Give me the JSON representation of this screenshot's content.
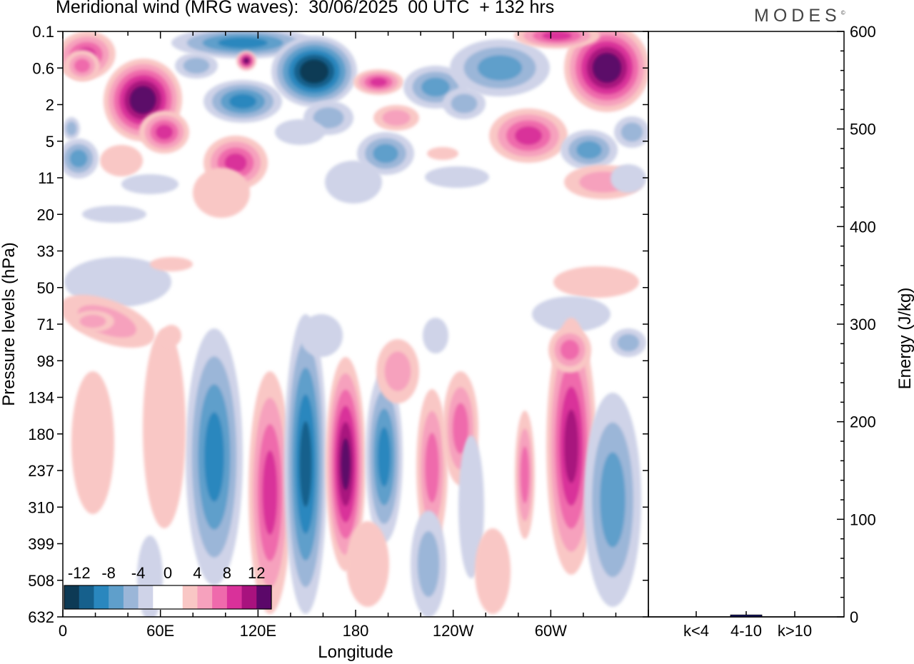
{
  "header": {
    "title": "Meridional wind (MRG waves):  30/06/2025  00 UTC  + 132 hrs",
    "logo": "MODES"
  },
  "colors": {
    "neg": [
      "#0d3a55",
      "#16608c",
      "#2a87be",
      "#5f9fcb",
      "#9bb6d8",
      "#cfd3e8"
    ],
    "pos": [
      "#f9c7c5",
      "#f6a1bd",
      "#ef6aac",
      "#d9319a",
      "#a8127e",
      "#5b0869"
    ]
  },
  "chart_data": [
    {
      "type": "heatmap",
      "title": "Meridional wind (MRG waves):  30/06/2025  00 UTC  + 132 hrs",
      "xlabel": "Longitude",
      "ylabel": "Pressure levels (hPa)",
      "x_ticks": [
        "0",
        "60E",
        "120E",
        "180",
        "120W",
        "60W"
      ],
      "x_range_deg": [
        0,
        360
      ],
      "y_levels": [
        "0.1",
        "0.6",
        "2",
        "5",
        "11",
        "20",
        "33",
        "50",
        "71",
        "98",
        "134",
        "180",
        "237",
        "310",
        "399",
        "508",
        "632"
      ],
      "colorbar": {
        "labels": [
          "-12",
          "-8",
          "-4",
          "0",
          "4",
          "8",
          "12"
        ],
        "contour_levels": [
          -14,
          -12,
          -10,
          -8,
          -6,
          -4,
          -2,
          2,
          4,
          6,
          8,
          10,
          12,
          14
        ]
      },
      "features": [
        {
          "lon": 50,
          "level": "2",
          "value": 14
        },
        {
          "lon": 160,
          "level": "0.6",
          "value": -14
        },
        {
          "lon": 340,
          "level": "0.6",
          "value": 14
        },
        {
          "lon": 98,
          "level": "180",
          "value": -9
        },
        {
          "lon": 150,
          "level": "134",
          "value": -10
        },
        {
          "lon": 173,
          "level": "180",
          "value": 12
        },
        {
          "lon": 193,
          "level": "237",
          "value": -8
        },
        {
          "lon": 302,
          "level": "237",
          "value": 11
        },
        {
          "lon": 335,
          "level": "310",
          "value": -7
        }
      ]
    },
    {
      "type": "bar",
      "categories": [
        "k<4",
        "4-10",
        "k>10"
      ],
      "values": [
        0,
        2,
        0
      ],
      "ylabel": "Energy (J/kg)",
      "ylim": [
        0,
        600
      ],
      "y_ticks": [
        "0",
        "100",
        "200",
        "300",
        "400",
        "500",
        "600"
      ]
    }
  ]
}
